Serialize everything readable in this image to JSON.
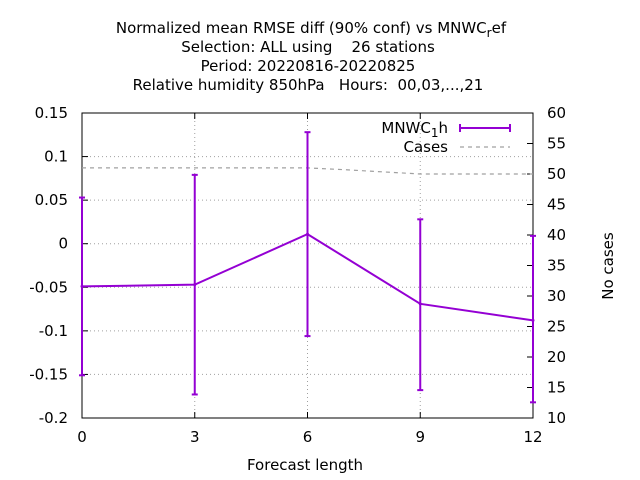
{
  "chart_data": {
    "type": "line",
    "title": {
      "line1_pre": "Normalized mean RMSE diff (90% conf) vs MNWC",
      "line1_sub": "r",
      "line1_post": "ef",
      "line2": "Selection: ALL using    26 stations",
      "line3": "Period: 20220816-20220825",
      "line4": "Relative humidity 850hPa   Hours:  00,03,...,21"
    },
    "xlabel": "Forecast length",
    "ylabel": "",
    "y2label": "No cases",
    "xlim": [
      0,
      12
    ],
    "ylim": [
      -0.2,
      0.15
    ],
    "y2lim": [
      10,
      60
    ],
    "x_ticks": [
      "0",
      "3",
      "6",
      "9",
      "12"
    ],
    "y_ticks": [
      "0.15",
      "0.1",
      "0.05",
      "0",
      "-0.05",
      "-0.1",
      "-0.15",
      "-0.2"
    ],
    "y2_ticks": [
      "60",
      "55",
      "50",
      "45",
      "40",
      "35",
      "30",
      "25",
      "20",
      "15",
      "10"
    ],
    "grid": true,
    "legend_position": "top-right",
    "series": [
      {
        "name_pre": "MNWC",
        "name_sub": "1",
        "name_post": "h",
        "color": "#9400d3",
        "x": [
          0,
          3,
          6,
          9,
          12
        ],
        "y": [
          -0.049,
          -0.047,
          0.011,
          -0.069,
          -0.088
        ],
        "y_low": [
          -0.151,
          -0.173,
          -0.106,
          -0.168,
          -0.182
        ],
        "y_high": [
          0.053,
          0.079,
          0.128,
          0.028,
          0.009
        ]
      },
      {
        "name": "Cases",
        "color": "#a0a0a0",
        "axis": "y2",
        "x": [
          0,
          3,
          6,
          7,
          9,
          12
        ],
        "y": [
          51,
          51,
          51,
          50.7,
          50,
          50
        ]
      }
    ]
  }
}
